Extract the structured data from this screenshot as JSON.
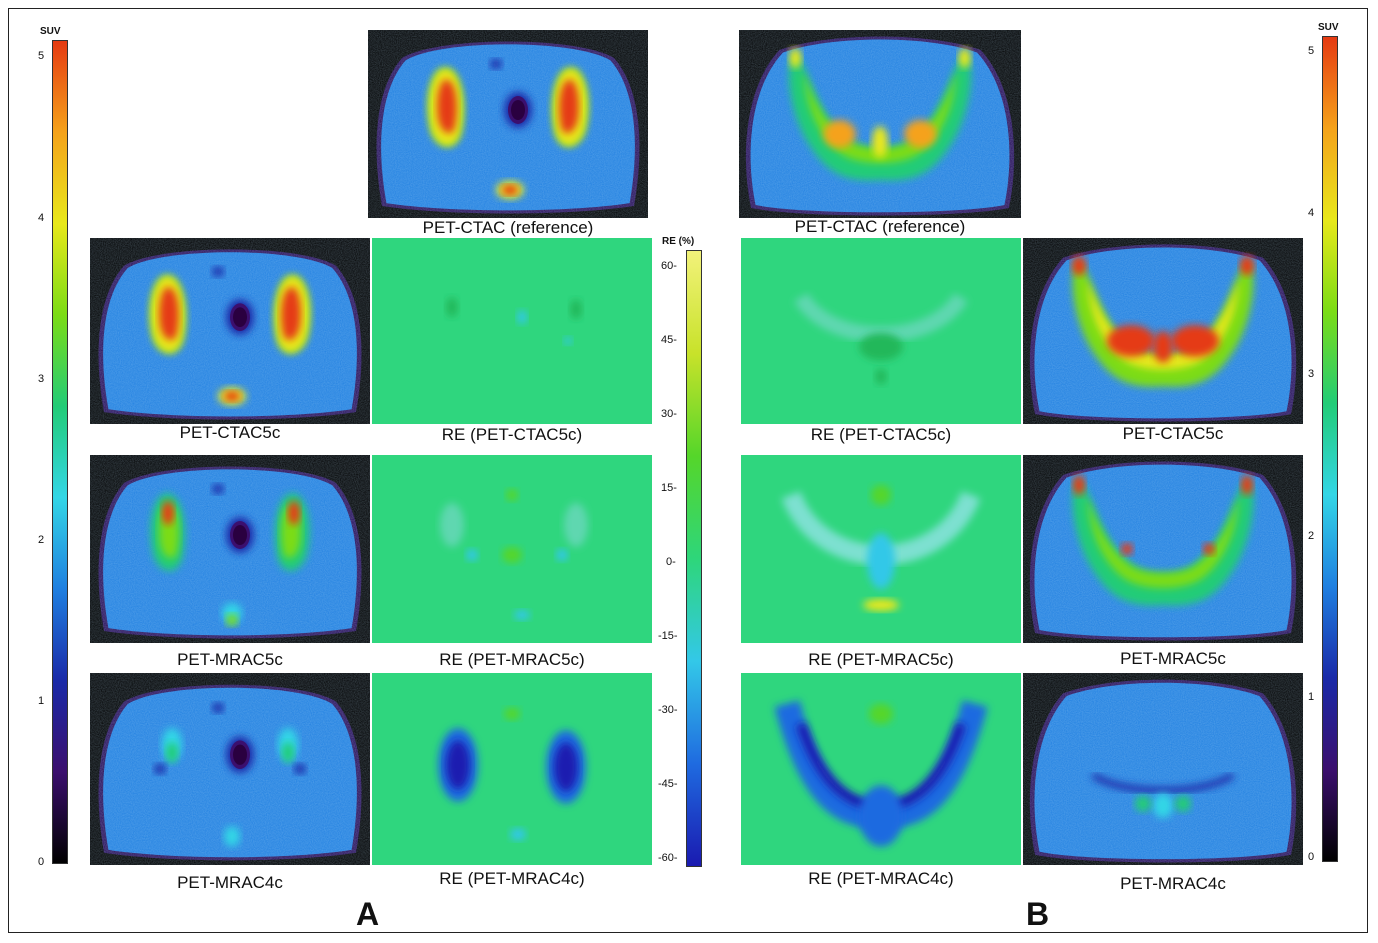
{
  "suv_scale": {
    "title": "SUV",
    "ticks": [
      "5",
      "4",
      "3",
      "2",
      "1",
      "0"
    ],
    "colors": [
      "#000000",
      "#3b0f6e",
      "#1a2aa8",
      "#1f7fe0",
      "#33d6e6",
      "#22cc77",
      "#7bdc16",
      "#e8e81a",
      "#f5a21a",
      "#e53a12"
    ]
  },
  "re_scale": {
    "title": "RE (%)",
    "ticks": [
      "60-",
      "45-",
      "30-",
      "15-",
      "0-",
      "-15-",
      "-30-",
      "-45-",
      "-60-"
    ],
    "colors": [
      "#1a1ab0",
      "#1f6be0",
      "#33c8e8",
      "#2ed67a",
      "#55d62a",
      "#c8e22a",
      "#f2f27a"
    ]
  },
  "panel_a": {
    "label": "A",
    "reference_caption": "PET-CTAC (reference)",
    "rows": [
      {
        "pet_caption": "PET-CTAC5c",
        "re_caption": "RE (PET-CTAC5c)"
      },
      {
        "pet_caption": "PET-MRAC5c",
        "re_caption": "RE (PET-MRAC5c)"
      },
      {
        "pet_caption": "PET-MRAC4c",
        "re_caption": "RE (PET-MRAC4c)"
      }
    ]
  },
  "panel_b": {
    "label": "B",
    "reference_caption": "PET-CTAC (reference)",
    "rows": [
      {
        "pet_caption": "PET-CTAC5c",
        "re_caption": "RE (PET-CTAC5c)"
      },
      {
        "pet_caption": "PET-MRAC5c",
        "re_caption": "RE (PET-MRAC5c)"
      },
      {
        "pet_caption": "PET-MRAC4c",
        "re_caption": "RE (PET-MRAC4c)"
      }
    ]
  }
}
